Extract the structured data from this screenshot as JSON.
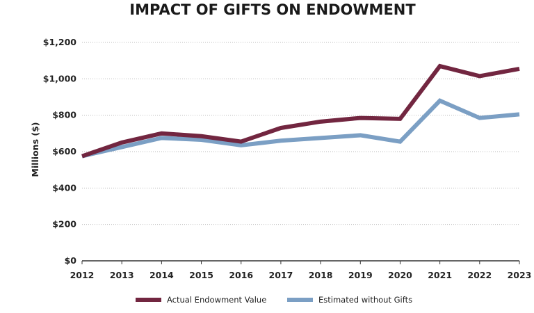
{
  "chart_data": {
    "type": "line",
    "title": "IMPACT OF GIFTS ON ENDOWMENT",
    "xlabel": "",
    "ylabel": "Millions ($)",
    "x": [
      2012,
      2013,
      2014,
      2015,
      2016,
      2017,
      2018,
      2019,
      2020,
      2021,
      2022,
      2023
    ],
    "xtick_labels": [
      "2012",
      "2013",
      "2014",
      "2015",
      "2016",
      "2017",
      "2018",
      "2019",
      "2020",
      "2021",
      "2022",
      "2023"
    ],
    "ylim": [
      0,
      1200
    ],
    "yticks": [
      0,
      200,
      400,
      600,
      800,
      1000,
      1200
    ],
    "ytick_labels": [
      "$0",
      "$200",
      "$400",
      "$600",
      "$800",
      "$1,000",
      "$1,200"
    ],
    "grid": "horizontal dotted",
    "legend_position": "bottom",
    "series": [
      {
        "name": "Actual Endowment Value",
        "color": "#722640",
        "values": [
          575,
          650,
          700,
          685,
          655,
          730,
          765,
          785,
          780,
          1070,
          1015,
          1055
        ]
      },
      {
        "name": "Estimated without Gifts",
        "color": "#7b9fc4",
        "values": [
          575,
          625,
          675,
          665,
          635,
          660,
          675,
          690,
          655,
          880,
          785,
          805
        ]
      }
    ]
  }
}
